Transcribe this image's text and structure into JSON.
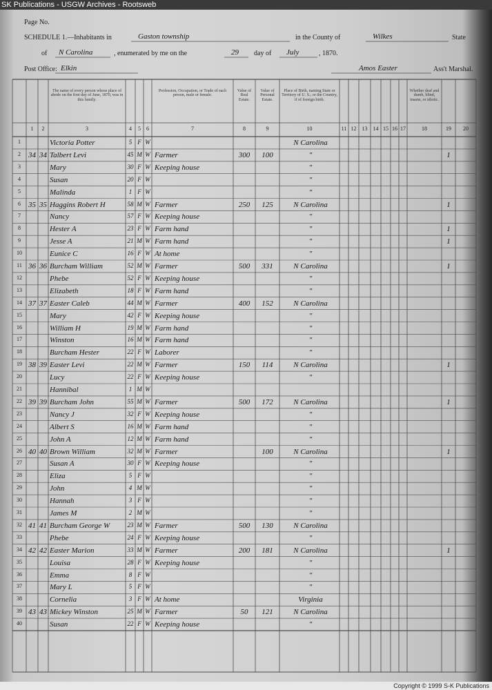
{
  "banner": "SK Publications - USGW Archives - Rootsweb",
  "footer": "Copyright © 1999 S-K Publications",
  "header": {
    "page_no": "Page No.",
    "schedule": "SCHEDULE 1.—Inhabitants in",
    "township": "Gaston township",
    "county_label": "in the County of",
    "county": "Wilkes",
    "state_label": "State",
    "of_label": "of",
    "state": "N Carolina",
    "enumerated": ", enumerated by me on the",
    "day": "29",
    "day_of": "day of",
    "month": "July",
    "year": ", 1870.",
    "post_office_label": "Post Office:",
    "post_office": "Elkin",
    "marshal": "Amos Easter",
    "marshal_label": "Ass't Marshal."
  },
  "columns": [
    {
      "number": 1
    },
    {
      "number": 2
    },
    {
      "number": 3,
      "title": "The name of every person whose place of abode on the first day of June, 1870, was in this family."
    },
    {
      "number": 4
    },
    {
      "number": 5
    },
    {
      "number": 6
    },
    {
      "number": 7,
      "title": "Profession, Occupation, or Trade of each person, male or female."
    },
    {
      "number": 8,
      "title": "Value of Real Estate."
    },
    {
      "number": 9,
      "title": "Value of Personal Estate."
    },
    {
      "number": 10,
      "title": "Place of Birth, naming State or Territory of U. S.; or the Country, if of foreign birth."
    },
    {
      "number": 11
    },
    {
      "number": 12
    },
    {
      "number": 13
    },
    {
      "number": 14
    },
    {
      "number": 15
    },
    {
      "number": 16
    },
    {
      "number": 17
    },
    {
      "number": 18,
      "title": "Whether deaf and dumb, blind, insane, or idiotic."
    },
    {
      "number": 19
    },
    {
      "number": 20
    }
  ],
  "rows": [
    {
      "line": 1,
      "name": "Victoria Potter",
      "age": "5",
      "sex": "F",
      "color": "W",
      "birthplace": "N Carolina"
    },
    {
      "line": 2,
      "dwelling": "34",
      "family": "34",
      "name": "Talbert Levi",
      "age": "45",
      "sex": "M",
      "color": "W",
      "occupation": "Farmer",
      "real_estate": "300",
      "personal_estate": "100",
      "birthplace": "\"",
      "c19": "1"
    },
    {
      "line": 3,
      "name": "Mary",
      "age": "30",
      "sex": "F",
      "color": "W",
      "occupation": "Keeping house",
      "birthplace": "\""
    },
    {
      "line": 4,
      "name": "Susan",
      "age": "20",
      "sex": "F",
      "color": "W",
      "birthplace": "\""
    },
    {
      "line": 5,
      "name": "Malinda",
      "age": "1",
      "sex": "F",
      "color": "W",
      "birthplace": "\""
    },
    {
      "line": 6,
      "dwelling": "35",
      "family": "35",
      "name": "Haggins Robert H",
      "age": "58",
      "sex": "M",
      "color": "W",
      "occupation": "Farmer",
      "real_estate": "250",
      "personal_estate": "125",
      "birthplace": "N Carolina",
      "c19": "1"
    },
    {
      "line": 7,
      "name": "Nancy",
      "age": "57",
      "sex": "F",
      "color": "W",
      "occupation": "Keeping house",
      "birthplace": "\""
    },
    {
      "line": 8,
      "name": "Hester A",
      "age": "23",
      "sex": "F",
      "color": "W",
      "occupation": "Farm hand",
      "birthplace": "\"",
      "c19": "1"
    },
    {
      "line": 9,
      "name": "Jesse A",
      "age": "21",
      "sex": "M",
      "color": "W",
      "occupation": "Farm hand",
      "birthplace": "\"",
      "c19": "1"
    },
    {
      "line": 10,
      "name": "Eunice C",
      "age": "16",
      "sex": "F",
      "color": "W",
      "occupation": "At home",
      "birthplace": "\""
    },
    {
      "line": 11,
      "dwelling": "36",
      "family": "36",
      "name": "Burcham William",
      "age": "52",
      "sex": "M",
      "color": "W",
      "occupation": "Farmer",
      "real_estate": "500",
      "personal_estate": "331",
      "birthplace": "N Carolina",
      "c19": "1"
    },
    {
      "line": 12,
      "name": "Phebe",
      "age": "52",
      "sex": "F",
      "color": "W",
      "occupation": "Keeping house",
      "birthplace": "\""
    },
    {
      "line": 13,
      "name": "Elizabeth",
      "age": "18",
      "sex": "F",
      "color": "W",
      "occupation": "Farm hand",
      "birthplace": "\""
    },
    {
      "line": 14,
      "dwelling": "37",
      "family": "37",
      "name": "Easter Caleb",
      "age": "44",
      "sex": "M",
      "color": "W",
      "occupation": "Farmer",
      "real_estate": "400",
      "personal_estate": "152",
      "birthplace": "N Carolina"
    },
    {
      "line": 15,
      "name": "Mary",
      "age": "42",
      "sex": "F",
      "color": "W",
      "occupation": "Keeping house",
      "birthplace": "\""
    },
    {
      "line": 16,
      "name": "William H",
      "age": "19",
      "sex": "M",
      "color": "W",
      "occupation": "Farm hand",
      "birthplace": "\""
    },
    {
      "line": 17,
      "name": "Winston",
      "age": "16",
      "sex": "M",
      "color": "W",
      "occupation": "Farm hand",
      "birthplace": "\""
    },
    {
      "line": 18,
      "name": "Burcham Hester",
      "age": "22",
      "sex": "F",
      "color": "W",
      "occupation": "Laborer",
      "birthplace": "\""
    },
    {
      "line": 19,
      "dwelling": "38",
      "family": "39",
      "name": "Easter Levi",
      "age": "22",
      "sex": "M",
      "color": "W",
      "occupation": "Farmer",
      "real_estate": "150",
      "personal_estate": "114",
      "birthplace": "N Carolina",
      "c19": "1"
    },
    {
      "line": 20,
      "name": "Lucy",
      "age": "22",
      "sex": "F",
      "color": "W",
      "occupation": "Keeping house",
      "birthplace": "\""
    },
    {
      "line": 21,
      "name": "Hannibal",
      "age": "1",
      "sex": "M",
      "color": "W"
    },
    {
      "line": 22,
      "dwelling": "39",
      "family": "39",
      "name": "Burcham John",
      "age": "55",
      "sex": "M",
      "color": "W",
      "occupation": "Farmer",
      "real_estate": "500",
      "personal_estate": "172",
      "birthplace": "N Carolina",
      "c19": "1"
    },
    {
      "line": 23,
      "name": "Nancy J",
      "age": "32",
      "sex": "F",
      "color": "W",
      "occupation": "Keeping house",
      "birthplace": "\""
    },
    {
      "line": 24,
      "name": "Albert S",
      "age": "16",
      "sex": "M",
      "color": "W",
      "occupation": "Farm hand",
      "birthplace": "\""
    },
    {
      "line": 25,
      "name": "John A",
      "age": "12",
      "sex": "M",
      "color": "W",
      "occupation": "Farm hand",
      "birthplace": "\""
    },
    {
      "line": 26,
      "dwelling": "40",
      "family": "40",
      "name": "Brown William",
      "age": "32",
      "sex": "M",
      "color": "W",
      "occupation": "Farmer",
      "personal_estate": "100",
      "birthplace": "N Carolina",
      "c19": "1"
    },
    {
      "line": 27,
      "name": "Susan A",
      "age": "30",
      "sex": "F",
      "color": "W",
      "occupation": "Keeping house",
      "birthplace": "\""
    },
    {
      "line": 28,
      "name": "Eliza",
      "age": "5",
      "sex": "F",
      "color": "W",
      "birthplace": "\""
    },
    {
      "line": 29,
      "name": "John",
      "age": "4",
      "sex": "M",
      "color": "W",
      "birthplace": "\""
    },
    {
      "line": 30,
      "name": "Hannah",
      "age": "3",
      "sex": "F",
      "color": "W",
      "birthplace": "\""
    },
    {
      "line": 31,
      "name": "James M",
      "age": "2",
      "sex": "M",
      "color": "W",
      "birthplace": "\""
    },
    {
      "line": 32,
      "dwelling": "41",
      "family": "41",
      "name": "Burcham George W",
      "age": "23",
      "sex": "M",
      "color": "W",
      "occupation": "Farmer",
      "real_estate": "500",
      "personal_estate": "130",
      "birthplace": "N Carolina"
    },
    {
      "line": 33,
      "name": "Phebe",
      "age": "24",
      "sex": "F",
      "color": "W",
      "occupation": "Keeping house",
      "birthplace": "\""
    },
    {
      "line": 34,
      "dwelling": "42",
      "family": "42",
      "name": "Easter Marion",
      "age": "33",
      "sex": "M",
      "color": "W",
      "occupation": "Farmer",
      "real_estate": "200",
      "personal_estate": "181",
      "birthplace": "N Carolina",
      "c19": "1"
    },
    {
      "line": 35,
      "name": "Louisa",
      "age": "28",
      "sex": "F",
      "color": "W",
      "occupation": "Keeping house",
      "birthplace": "\""
    },
    {
      "line": 36,
      "name": "Emma",
      "age": "8",
      "sex": "F",
      "color": "W",
      "birthplace": "\""
    },
    {
      "line": 37,
      "name": "Mary L",
      "age": "5",
      "sex": "F",
      "color": "W",
      "birthplace": "\""
    },
    {
      "line": 38,
      "name": "Cornelia",
      "age": "3",
      "sex": "F",
      "color": "W",
      "occupation": "At home",
      "birthplace": "Virginia"
    },
    {
      "line": 39,
      "dwelling": "43",
      "family": "43",
      "name": "Mickey Winston",
      "age": "25",
      "sex": "M",
      "color": "W",
      "occupation": "Farmer",
      "real_estate": "50",
      "personal_estate": "121",
      "birthplace": "N Carolina"
    },
    {
      "line": 40,
      "name": "Susan",
      "age": "22",
      "sex": "F",
      "color": "W",
      "occupation": "Keeping house",
      "birthplace": "\""
    }
  ]
}
